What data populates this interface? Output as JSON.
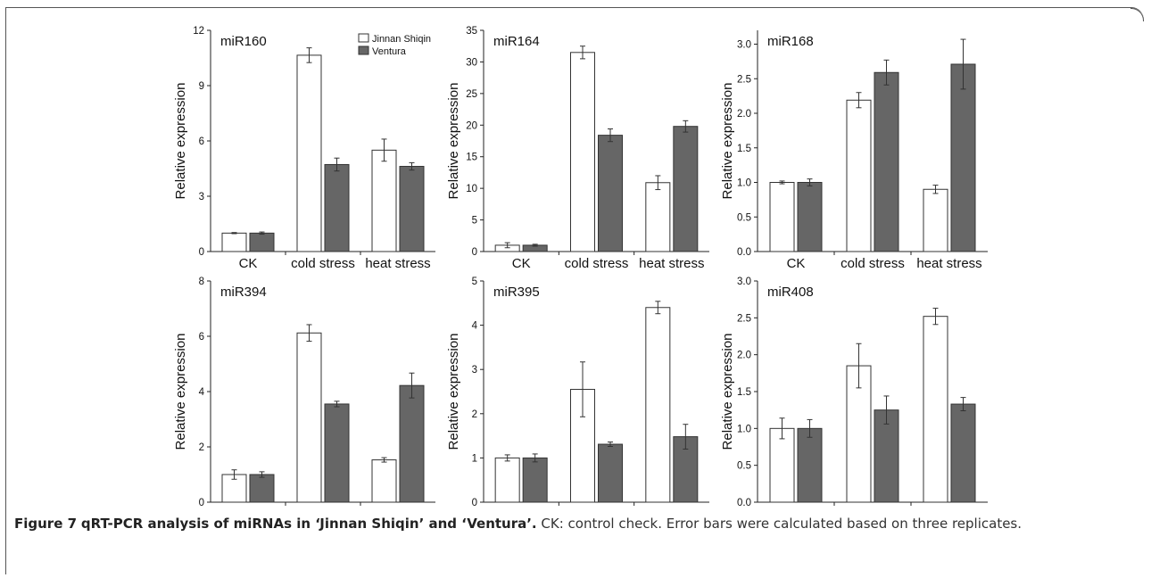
{
  "chart_data": [
    {
      "type": "bar",
      "title": "miR160",
      "categories": [
        "CK",
        "cold stress",
        "heat stress"
      ],
      "ylabel": "Relative expression",
      "ylim": [
        0,
        12
      ],
      "yticks": [
        0,
        3,
        6,
        9,
        12
      ],
      "legend": "top-right",
      "series": [
        {
          "name": "Jinnan Shiqin",
          "color": "#ffffff",
          "values": [
            1.0,
            10.65,
            5.5
          ],
          "errors": [
            0.03,
            0.4,
            0.6
          ]
        },
        {
          "name": "Ventura",
          "color": "#666666",
          "values": [
            1.0,
            4.72,
            4.62
          ],
          "errors": [
            0.06,
            0.35,
            0.2
          ]
        }
      ]
    },
    {
      "type": "bar",
      "title": "miR164",
      "categories": [
        "CK",
        "cold stress",
        "heat stress"
      ],
      "ylabel": "Relative expression",
      "ylim": [
        0,
        35
      ],
      "yticks": [
        0,
        5,
        10,
        15,
        20,
        25,
        30,
        35
      ],
      "series": [
        {
          "name": "Jinnan Shiqin",
          "color": "#ffffff",
          "values": [
            1.0,
            31.5,
            10.9
          ],
          "errors": [
            0.4,
            1.0,
            1.1
          ]
        },
        {
          "name": "Ventura",
          "color": "#666666",
          "values": [
            1.0,
            18.4,
            19.8
          ],
          "errors": [
            0.15,
            1.0,
            0.9
          ]
        }
      ]
    },
    {
      "type": "bar",
      "title": "miR168",
      "categories": [
        "CK",
        "cold stress",
        "heat stress"
      ],
      "ylabel": "Relative expression",
      "ylim": [
        0,
        3.2
      ],
      "yticks": [
        0.0,
        0.5,
        1.0,
        1.5,
        2.0,
        2.5,
        3.0
      ],
      "tickDecimals": 1,
      "series": [
        {
          "name": "Jinnan Shiqin",
          "color": "#ffffff",
          "values": [
            1.0,
            2.19,
            0.9
          ],
          "errors": [
            0.02,
            0.11,
            0.06
          ]
        },
        {
          "name": "Ventura",
          "color": "#666666",
          "values": [
            1.0,
            2.59,
            2.71
          ],
          "errors": [
            0.05,
            0.18,
            0.36
          ]
        }
      ]
    },
    {
      "type": "bar",
      "title": "miR394",
      "categories": [
        "CK",
        "cold stress",
        "heat stress"
      ],
      "ylabel": "Relative expression",
      "ylim": [
        0,
        8
      ],
      "yticks": [
        0,
        2,
        4,
        6,
        8
      ],
      "series": [
        {
          "name": "Jinnan Shiqin",
          "color": "#ffffff",
          "values": [
            1.0,
            6.12,
            1.53
          ],
          "errors": [
            0.17,
            0.3,
            0.08
          ]
        },
        {
          "name": "Ventura",
          "color": "#666666",
          "values": [
            1.0,
            3.55,
            4.22
          ],
          "errors": [
            0.1,
            0.1,
            0.45
          ]
        }
      ]
    },
    {
      "type": "bar",
      "title": "miR395",
      "categories": [
        "CK",
        "cold stress",
        "heat stress"
      ],
      "ylabel": "Relative expression",
      "ylim": [
        0,
        5
      ],
      "yticks": [
        0,
        1,
        2,
        3,
        4,
        5
      ],
      "series": [
        {
          "name": "Jinnan Shiqin",
          "color": "#ffffff",
          "values": [
            1.0,
            2.55,
            4.4
          ],
          "errors": [
            0.07,
            0.62,
            0.14
          ]
        },
        {
          "name": "Ventura",
          "color": "#666666",
          "values": [
            1.0,
            1.31,
            1.48
          ],
          "errors": [
            0.09,
            0.05,
            0.28
          ]
        }
      ]
    },
    {
      "type": "bar",
      "title": "miR408",
      "categories": [
        "CK",
        "cold stress",
        "heat stress"
      ],
      "ylabel": "Relative expression",
      "ylim": [
        0,
        3.0
      ],
      "yticks": [
        0.0,
        0.5,
        1.0,
        1.5,
        2.0,
        2.5,
        3.0
      ],
      "tickDecimals": 1,
      "series": [
        {
          "name": "Jinnan Shiqin",
          "color": "#ffffff",
          "values": [
            1.0,
            1.85,
            2.52
          ],
          "errors": [
            0.14,
            0.3,
            0.11
          ]
        },
        {
          "name": "Ventura",
          "color": "#666666",
          "values": [
            1.0,
            1.25,
            1.33
          ],
          "errors": [
            0.12,
            0.19,
            0.09
          ]
        }
      ]
    }
  ],
  "caption": {
    "label": "Figure 7",
    "title": "qRT-PCR analysis of miRNAs in ‘Jinnan Shiqin’ and ‘Ventura’.",
    "text": "CK: control check. Error bars were calculated based on three replicates."
  }
}
